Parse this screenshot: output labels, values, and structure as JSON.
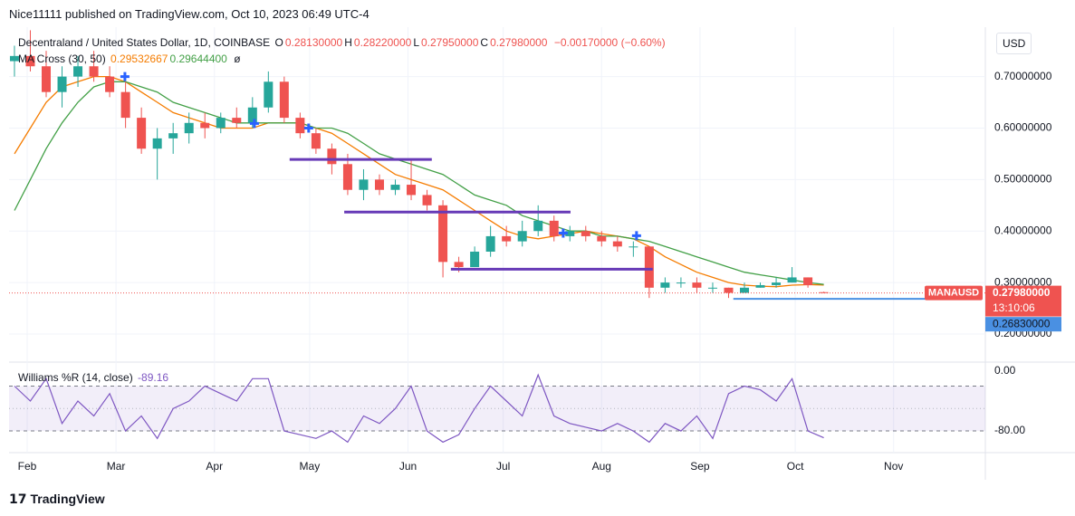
{
  "chart_data": {
    "type": "candlestick",
    "header": "Nice11111 published on TradingView.com, Oct 10, 2023 06:49 UTC-4",
    "title": "Decentraland / United States Dollar, 1D, COINBASE",
    "ohlc": [
      {
        "label": "O",
        "value": "0.28130000"
      },
      {
        "label": "H",
        "value": "0.28220000"
      },
      {
        "label": "L",
        "value": "0.27950000"
      },
      {
        "label": "C",
        "value": "0.27980000"
      }
    ],
    "change": "−0.00170000 (−0.60%)",
    "ma_title": "MA Cross (30, 50)",
    "currency": "USD",
    "footer": "TradingView",
    "up_color": "#26a69a",
    "down_color": "#ef5350",
    "x": [
      28,
      33,
      38,
      43,
      48,
      53,
      58,
      63,
      68,
      73,
      78,
      83,
      88,
      93,
      98,
      103,
      108,
      113,
      118,
      123,
      128,
      133,
      138,
      143,
      148,
      153,
      158,
      163,
      168,
      173,
      178,
      183,
      188,
      193,
      198,
      203,
      208,
      213,
      218,
      223,
      228,
      233,
      238,
      243,
      248,
      253,
      258,
      263,
      268,
      273,
      278,
      283
    ],
    "open": [
      0.73,
      0.74,
      0.72,
      0.67,
      0.7,
      0.72,
      0.7,
      0.67,
      0.62,
      0.56,
      0.58,
      0.59,
      0.61,
      0.6,
      0.62,
      0.61,
      0.64,
      0.69,
      0.62,
      0.59,
      0.56,
      0.53,
      0.48,
      0.5,
      0.48,
      0.49,
      0.47,
      0.45,
      0.34,
      0.33,
      0.36,
      0.39,
      0.38,
      0.4,
      0.42,
      0.39,
      0.4,
      0.39,
      0.38,
      0.37,
      0.37,
      0.29,
      0.3,
      0.3,
      0.29,
      0.29,
      0.28,
      0.29,
      0.295,
      0.3,
      0.31,
      0.2813
    ],
    "high": [
      0.76,
      0.79,
      0.75,
      0.72,
      0.74,
      0.75,
      0.72,
      0.69,
      0.64,
      0.6,
      0.61,
      0.63,
      0.63,
      0.63,
      0.64,
      0.66,
      0.71,
      0.7,
      0.63,
      0.6,
      0.57,
      0.55,
      0.52,
      0.51,
      0.5,
      0.54,
      0.48,
      0.46,
      0.35,
      0.37,
      0.41,
      0.41,
      0.42,
      0.45,
      0.43,
      0.41,
      0.41,
      0.4,
      0.39,
      0.38,
      0.37,
      0.31,
      0.31,
      0.31,
      0.3,
      0.29,
      0.3,
      0.3,
      0.31,
      0.33,
      0.31,
      0.2822
    ],
    "low": [
      0.7,
      0.71,
      0.66,
      0.64,
      0.68,
      0.69,
      0.66,
      0.6,
      0.55,
      0.5,
      0.55,
      0.57,
      0.58,
      0.59,
      0.6,
      0.6,
      0.63,
      0.61,
      0.58,
      0.55,
      0.51,
      0.47,
      0.46,
      0.47,
      0.47,
      0.46,
      0.44,
      0.31,
      0.32,
      0.33,
      0.35,
      0.37,
      0.37,
      0.39,
      0.38,
      0.38,
      0.38,
      0.37,
      0.36,
      0.35,
      0.27,
      0.28,
      0.29,
      0.28,
      0.28,
      0.27,
      0.28,
      0.29,
      0.29,
      0.3,
      0.29,
      0.2795
    ],
    "close": [
      0.74,
      0.72,
      0.67,
      0.7,
      0.72,
      0.7,
      0.67,
      0.62,
      0.56,
      0.58,
      0.59,
      0.61,
      0.6,
      0.62,
      0.61,
      0.64,
      0.69,
      0.62,
      0.59,
      0.56,
      0.53,
      0.48,
      0.5,
      0.48,
      0.49,
      0.47,
      0.45,
      0.34,
      0.33,
      0.36,
      0.39,
      0.38,
      0.4,
      0.42,
      0.39,
      0.4,
      0.39,
      0.38,
      0.37,
      0.37,
      0.29,
      0.3,
      0.3,
      0.29,
      0.29,
      0.28,
      0.29,
      0.295,
      0.3,
      0.31,
      0.295,
      0.2798
    ],
    "ma_series": [
      {
        "label": "0.29532667",
        "color": "#f57c00",
        "values": [
          0.55,
          0.6,
          0.65,
          0.68,
          0.69,
          0.7,
          0.7,
          0.69,
          0.67,
          0.65,
          0.63,
          0.62,
          0.61,
          0.6,
          0.6,
          0.6,
          0.61,
          0.61,
          0.61,
          0.6,
          0.59,
          0.57,
          0.55,
          0.53,
          0.51,
          0.5,
          0.49,
          0.48,
          0.46,
          0.44,
          0.42,
          0.4,
          0.39,
          0.385,
          0.39,
          0.395,
          0.4,
          0.395,
          0.39,
          0.385,
          0.37,
          0.35,
          0.335,
          0.32,
          0.31,
          0.3,
          0.295,
          0.293,
          0.292,
          0.295,
          0.296,
          0.2953
        ]
      },
      {
        "label": "0.29644400",
        "color": "#43a047",
        "values": [
          0.44,
          0.5,
          0.56,
          0.61,
          0.65,
          0.68,
          0.69,
          0.69,
          0.68,
          0.67,
          0.65,
          0.64,
          0.63,
          0.62,
          0.61,
          0.61,
          0.61,
          0.61,
          0.61,
          0.6,
          0.6,
          0.59,
          0.57,
          0.55,
          0.54,
          0.53,
          0.52,
          0.51,
          0.49,
          0.47,
          0.46,
          0.45,
          0.43,
          0.42,
          0.41,
          0.4,
          0.4,
          0.39,
          0.39,
          0.385,
          0.38,
          0.37,
          0.36,
          0.35,
          0.34,
          0.33,
          0.32,
          0.315,
          0.31,
          0.305,
          0.3,
          0.2964
        ]
      }
    ],
    "xlim": [
      26.3,
      333.9
    ],
    "xticks": [
      {
        "value": 32,
        "label": "Feb"
      },
      {
        "value": 60,
        "label": "Mar"
      },
      {
        "value": 91,
        "label": "Apr"
      },
      {
        "value": 121,
        "label": "May"
      },
      {
        "value": 152,
        "label": "Jun"
      },
      {
        "value": 182,
        "label": "Jul"
      },
      {
        "value": 213,
        "label": "Aug"
      },
      {
        "value": 244,
        "label": "Sep"
      },
      {
        "value": 274,
        "label": "Oct"
      },
      {
        "value": 305,
        "label": "Nov"
      }
    ],
    "ylim": [
      0.149,
      0.796
    ],
    "yticks": [
      {
        "value": 0.2,
        "label": "0.20000000"
      },
      {
        "value": 0.3,
        "label": "0.30000000"
      },
      {
        "value": 0.4,
        "label": "0.40000000"
      },
      {
        "value": 0.5,
        "label": "0.50000000"
      },
      {
        "value": 0.6,
        "label": "0.60000000"
      },
      {
        "value": 0.7,
        "label": "0.70000000"
      }
    ],
    "grid": true,
    "levels": [
      {
        "x": [
          114.7,
          159.5
        ],
        "y": 0.539
      },
      {
        "x": [
          131.9,
          203.2
        ],
        "y": 0.437
      },
      {
        "x": [
          165.5,
          229.1
        ],
        "y": 0.326
      }
    ],
    "level_color": "#673ab7",
    "support": {
      "x": [
        254.5,
        318.2
      ],
      "y": 0.2683,
      "color": "#4a90e2"
    },
    "markers": [
      {
        "x": 62.8,
        "y": 0.7
      },
      {
        "x": 103.6,
        "y": 0.609
      },
      {
        "x": 120.7,
        "y": 0.6
      },
      {
        "x": 200.9,
        "y": 0.396
      },
      {
        "x": 224.0,
        "y": 0.391
      }
    ],
    "marker_color": "#2962ff",
    "price_tag": {
      "name": "MANAUSD",
      "value": 0.2798,
      "label": "0.27980000",
      "countdown": "13:10:06",
      "color": "#ef5350"
    },
    "support_tag": {
      "value": 0.2683,
      "label": "0.26830000",
      "color": "#4a90e2"
    },
    "indicator": {
      "title": "Williams %R (14, close)",
      "value_label": "-89.16",
      "color": "#7e57c2",
      "values": [
        -20,
        -40,
        -10,
        -70,
        -40,
        -60,
        -30,
        -80,
        -60,
        -90,
        -50,
        -40,
        -20,
        -30,
        -40,
        -10,
        -10,
        -80,
        -85,
        -90,
        -80,
        -95,
        -60,
        -70,
        -50,
        -20,
        -80,
        -95,
        -85,
        -50,
        -20,
        -40,
        -60,
        -5,
        -60,
        -70,
        -75,
        -80,
        -70,
        -80,
        -95,
        -70,
        -80,
        -60,
        -90,
        -30,
        -20,
        -25,
        -40,
        -10,
        -80,
        -89.16
      ],
      "ylim": [
        -109,
        9.7
      ],
      "yticks": [
        {
          "value": 0,
          "label": "0.00"
        },
        {
          "value": -80,
          "label": "-80.00"
        }
      ],
      "band": [
        -20,
        -80
      ],
      "middle": -50
    }
  }
}
